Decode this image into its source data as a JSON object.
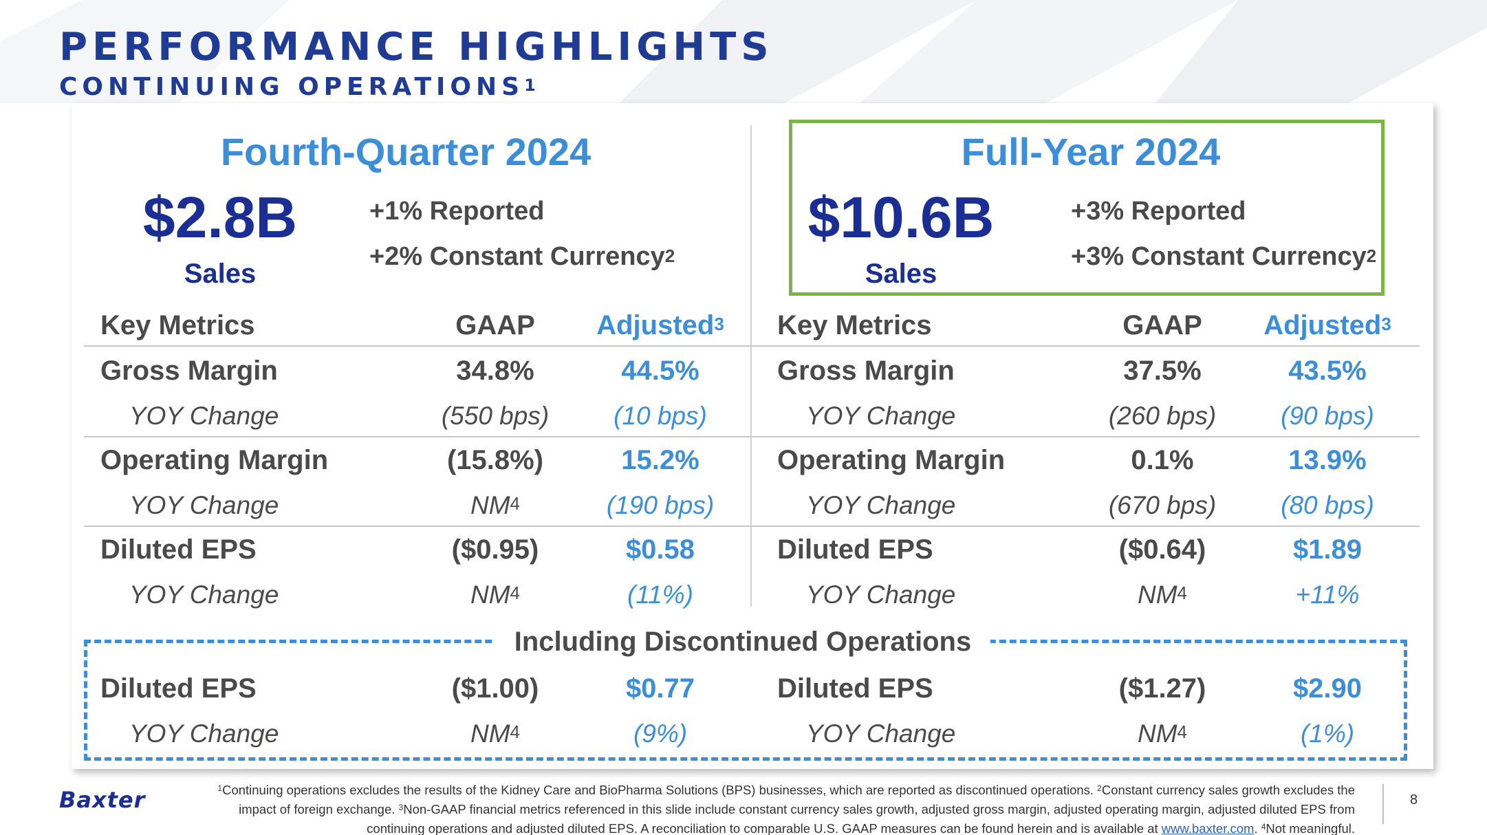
{
  "header": {
    "title": "PERFORMANCE HIGHLIGHTS",
    "subtitle": "CONTINUING OPERATIONS",
    "subtitle_sup": "1"
  },
  "q4": {
    "period": "Fourth-Quarter 2024",
    "sales_value": "$2.8B",
    "sales_label": "Sales",
    "reported": "+1% Reported",
    "constant_currency": "+2% Constant Currency",
    "cc_sup": "2"
  },
  "fy": {
    "period": "Full-Year 2024",
    "sales_value": "$10.6B",
    "sales_label": "Sales",
    "reported": "+3% Reported",
    "constant_currency": "+3% Constant Currency",
    "cc_sup": "2"
  },
  "table_header": {
    "key_metrics": "Key Metrics",
    "gaap": "GAAP",
    "adjusted": "Adjusted",
    "adjusted_sup": "3"
  },
  "metrics": {
    "gross_margin": {
      "label": "Gross Margin",
      "yoy_label": "YOY Change",
      "q4_gaap": "34.8%",
      "q4_adj": "44.5%",
      "q4_gaap_yoy": "(550 bps)",
      "q4_adj_yoy": "(10 bps)",
      "fy_gaap": "37.5%",
      "fy_adj": "43.5%",
      "fy_gaap_yoy": "(260 bps)",
      "fy_adj_yoy": "(90 bps)"
    },
    "operating_margin": {
      "label": "Operating Margin",
      "yoy_label": "YOY Change",
      "q4_gaap": "(15.8%)",
      "q4_adj": "15.2%",
      "q4_gaap_yoy": "NM",
      "q4_gaap_yoy_sup": "4",
      "q4_adj_yoy": "(190 bps)",
      "fy_gaap": "0.1%",
      "fy_adj": "13.9%",
      "fy_gaap_yoy": "(670 bps)",
      "fy_adj_yoy": "(80 bps)"
    },
    "diluted_eps": {
      "label": "Diluted EPS",
      "yoy_label": "YOY Change",
      "q4_gaap": "($0.95)",
      "q4_adj": "$0.58",
      "q4_gaap_yoy": "NM",
      "q4_gaap_yoy_sup": "4",
      "q4_adj_yoy": "(11%)",
      "fy_gaap": "($0.64)",
      "fy_adj": "$1.89",
      "fy_gaap_yoy": "NM",
      "fy_gaap_yoy_sup": "4",
      "fy_adj_yoy": "+11%"
    }
  },
  "discontinued": {
    "title": "Including Discontinued Operations",
    "label": "Diluted EPS",
    "yoy_label": "YOY Change",
    "q4_gaap": "($1.00)",
    "q4_adj": "$0.77",
    "q4_gaap_yoy": "NM",
    "q4_gaap_yoy_sup": "4",
    "q4_adj_yoy": "(9%)",
    "fy_gaap": "($1.27)",
    "fy_adj": "$2.90",
    "fy_gaap_yoy": "NM",
    "fy_gaap_yoy_sup": "4",
    "fy_adj_yoy": "(1%)"
  },
  "footer": {
    "logo": "Baxter",
    "fn1_sup": "1",
    "fn1": "Continuing operations excludes the results of the Kidney Care and BioPharma Solutions (BPS) businesses, which are reported as discontinued operations. ",
    "fn2_sup": "2",
    "fn2": "Constant currency sales growth excludes the impact of foreign exchange. ",
    "fn3_sup": "3",
    "fn3": "Non-GAAP financial metrics referenced in this slide include constant currency sales growth, adjusted gross margin, adjusted operating margin, adjusted diluted EPS from continuing operations and adjusted diluted EPS. A reconciliation to comparable U.S. GAAP measures can be found herein and is available at ",
    "link": "www.baxter.com",
    "fn3_end": ". ",
    "fn4_sup": "4",
    "fn4": "Not meaningful.",
    "page_number": "8"
  },
  "colors": {
    "navy": "#1a2e94",
    "light_blue": "#3d8ed8",
    "green_box": "#7ab547",
    "text_gray": "#4a4a4a"
  }
}
